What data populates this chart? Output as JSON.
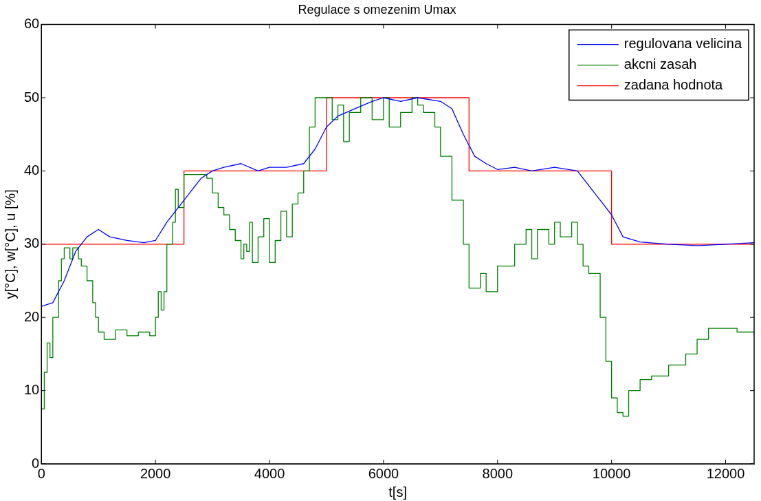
{
  "chart_data": {
    "type": "line",
    "title": "Regulace s omezenim Umax",
    "xlabel": "t[s]",
    "ylabel": "y[°C], w[°C], u [%]",
    "xlim": [
      0,
      12500
    ],
    "xticks": [
      0,
      2000,
      4000,
      6000,
      8000,
      10000,
      12000
    ],
    "ylim": [
      0,
      60
    ],
    "yticks": [
      0,
      10,
      20,
      30,
      40,
      50,
      60
    ],
    "grid": false,
    "legend": "top right",
    "marker": "none",
    "line_style": "solid",
    "series": [
      {
        "name": "regulovana velicina",
        "color": "#0000ff",
        "x": [
          0,
          200,
          400,
          600,
          800,
          1000,
          1200,
          1500,
          1800,
          2000,
          2200,
          2400,
          2600,
          2800,
          3000,
          3200,
          3500,
          3800,
          4000,
          4300,
          4600,
          4800,
          5000,
          5200,
          5500,
          5800,
          6000,
          6300,
          6600,
          7000,
          7200,
          7400,
          7600,
          7800,
          8000,
          8300,
          8600,
          9000,
          9400,
          9600,
          9800,
          10000,
          10200,
          10500,
          11000,
          11500,
          12000,
          12500
        ],
        "values": [
          21.5,
          22,
          25,
          29,
          31,
          32,
          31,
          30.5,
          30.2,
          30.5,
          33,
          35,
          37,
          39,
          40,
          40.5,
          41,
          40,
          40.5,
          40.5,
          41,
          43,
          46,
          47.5,
          48.5,
          49.5,
          50,
          49.5,
          50,
          49.5,
          48.5,
          45,
          42,
          41,
          40.2,
          40.5,
          40,
          40.5,
          40,
          38,
          36,
          34,
          31,
          30.3,
          30,
          29.8,
          30,
          30.2
        ]
      },
      {
        "name": "akcni zasah",
        "color": "#008000",
        "type": "step",
        "x": [
          0,
          50,
          100,
          150,
          200,
          300,
          350,
          400,
          500,
          550,
          650,
          700,
          800,
          900,
          950,
          1000,
          1100,
          1300,
          1500,
          1700,
          1900,
          2000,
          2050,
          2100,
          2150,
          2200,
          2300,
          2350,
          2400,
          2500,
          2800,
          2900,
          3000,
          3100,
          3200,
          3300,
          3400,
          3500,
          3550,
          3600,
          3650,
          3700,
          3800,
          3900,
          4000,
          4100,
          4200,
          4300,
          4400,
          4500,
          4600,
          4700,
          4800,
          5000,
          5100,
          5200,
          5300,
          5400,
          5600,
          5800,
          6000,
          6100,
          6300,
          6500,
          6600,
          6700,
          6900,
          7000,
          7200,
          7400,
          7500,
          7700,
          7800,
          8000,
          8300,
          8500,
          8600,
          8700,
          8900,
          9000,
          9100,
          9300,
          9400,
          9500,
          9600,
          9800,
          9900,
          10000,
          10100,
          10200,
          10300,
          10500,
          10700,
          11000,
          11300,
          11500,
          11700,
          12000,
          12200,
          12500
        ],
        "values": [
          7.5,
          12.5,
          16.5,
          14.5,
          20,
          25,
          28,
          29.5,
          28,
          29.5,
          28,
          27,
          25,
          22,
          20,
          18,
          17,
          18.3,
          17.5,
          18,
          17.5,
          20,
          23.5,
          21,
          23.5,
          30,
          33,
          37.5,
          35,
          39.5,
          39.5,
          39,
          37,
          35,
          34,
          32,
          30.5,
          28,
          30,
          29,
          33,
          27.5,
          31,
          33.5,
          27.5,
          30.5,
          34.5,
          31,
          35.5,
          37,
          40,
          46,
          50,
          50,
          47,
          49,
          44,
          48,
          50,
          47,
          50,
          46,
          48,
          50,
          49,
          48,
          46,
          42,
          36,
          30,
          24,
          26,
          23.5,
          27,
          30,
          32,
          28,
          32,
          30,
          33,
          31,
          33,
          30,
          27,
          26,
          20,
          14,
          9,
          7,
          6.5,
          10,
          11.5,
          12,
          13.5,
          15,
          17,
          18.5,
          18.5,
          18,
          17.5
        ]
      },
      {
        "name": "zadana hodnota",
        "color": "#ff0000",
        "type": "step",
        "x": [
          0,
          2500,
          5000,
          7500,
          10000,
          12500
        ],
        "values": [
          30,
          40,
          50,
          40,
          30,
          30
        ]
      }
    ]
  }
}
